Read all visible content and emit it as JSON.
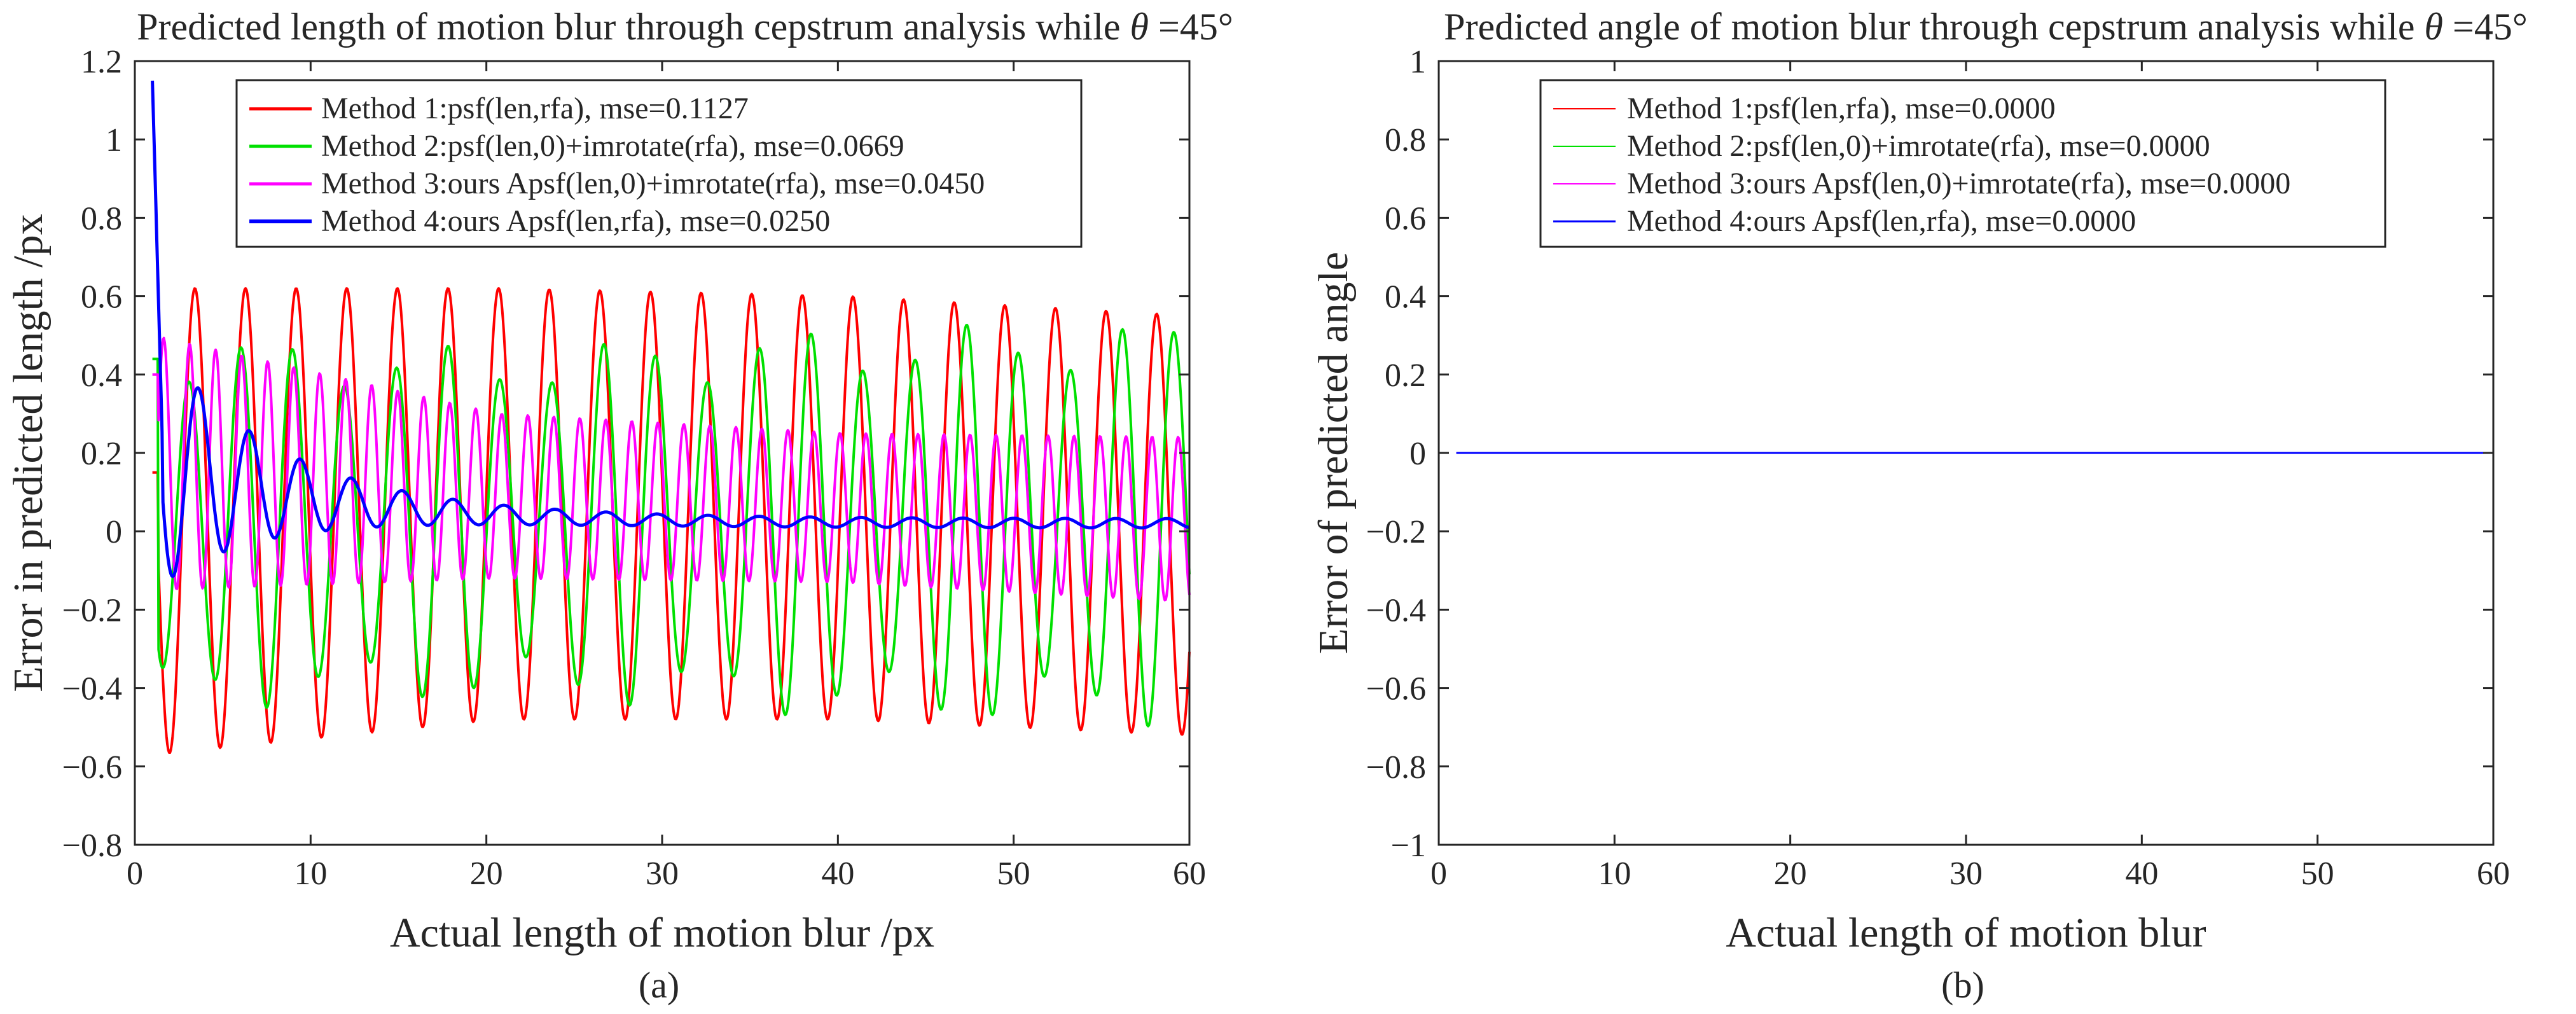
{
  "figure": {
    "panels": [
      "a",
      "b"
    ]
  },
  "chart_data": [
    {
      "id": "a",
      "type": "line",
      "title_main": "Predicted length of motion blur through cepstrum analysis while ",
      "title_theta": "θ",
      "title_tail": " =45°",
      "xlabel": "Actual length of motion blur /px",
      "ylabel": "Error in predicted length /px",
      "caption": "(a)",
      "xlim": [
        0,
        60
      ],
      "ylim": [
        -0.8,
        1.2
      ],
      "xticks": [
        0,
        10,
        20,
        30,
        40,
        50,
        60
      ],
      "yticks": [
        -0.8,
        -0.6,
        -0.4,
        -0.2,
        0,
        0.2,
        0.4,
        0.6,
        0.8,
        1,
        1.2
      ],
      "x_start": 1,
      "x_end": 60,
      "legend_position": "top",
      "series": [
        {
          "name": "Method 1:psf(len,rfa), mse=0.1127",
          "color": "#ff0000",
          "width": 4,
          "model": {
            "type": "oscillation",
            "period": 2.88,
            "phase": 0.4,
            "hi": [
              0.62,
              0.62,
              0.6,
              0.55
            ],
            "lo": [
              -0.57,
              -0.48,
              -0.48,
              -0.52
            ],
            "start_value": 0.15
          }
        },
        {
          "name": "Method 2:psf(len,0)+imrotate(rfa), mse=0.0669",
          "color": "#00e000",
          "width": 4,
          "model": {
            "type": "beat",
            "period": 2.95,
            "phase": 1.3,
            "amp": [
              0.48,
              0.45,
              0.5,
              0.52
            ],
            "offset": 0.02,
            "mod_period": 10,
            "mod_depth": 0.25,
            "start_value": 0.44
          }
        },
        {
          "name": "Method 3:ours Apsf(len,0)+imrotate(rfa), mse=0.0450",
          "color": "#ff00ff",
          "width": 4,
          "model": {
            "type": "oscillation",
            "period": 1.48,
            "phase": 0.9,
            "hi": [
              0.5,
              0.3,
              0.25,
              0.24
            ],
            "lo": [
              -0.15,
              -0.12,
              -0.13,
              -0.18
            ],
            "start_value": 0.4
          }
        },
        {
          "name": "Method 4:ours Apsf(len,rfa), mse=0.0250",
          "color": "#0000ff",
          "width": 5,
          "model": {
            "type": "decay",
            "start_value": 1.15,
            "period": 2.9,
            "amp0": 0.32,
            "decay": 0.16,
            "floor_amp": 0.012,
            "mean_start": 0.18,
            "mean_end": 0.02
          }
        }
      ]
    },
    {
      "id": "b",
      "type": "line",
      "title_main": "Predicted angle of motion blur through cepstrum analysis while ",
      "title_theta": "θ",
      "title_tail": " =45°",
      "xlabel": "Actual length of motion blur",
      "ylabel": "Error of predicted angle",
      "caption": "(b)",
      "xlim": [
        0,
        60
      ],
      "ylim": [
        -1,
        1
      ],
      "xticks": [
        0,
        10,
        20,
        30,
        40,
        50,
        60
      ],
      "yticks": [
        -1,
        -0.8,
        -0.6,
        -0.4,
        -0.2,
        0,
        0.2,
        0.4,
        0.6,
        0.8,
        1
      ],
      "x_start": 1,
      "x_end": 60,
      "legend_position": "top-left",
      "series": [
        {
          "name": "Method 1:psf(len,rfa), mse=0.0000",
          "color": "#ff0000",
          "width": 2,
          "model": {
            "type": "constant",
            "value": 0
          }
        },
        {
          "name": "Method 2:psf(len,0)+imrotate(rfa), mse=0.0000",
          "color": "#00e000",
          "width": 2,
          "model": {
            "type": "constant",
            "value": 0
          }
        },
        {
          "name": "Method 3:ours Apsf(len,0)+imrotate(rfa), mse=0.0000",
          "color": "#ff00ff",
          "width": 2,
          "model": {
            "type": "constant",
            "value": 0
          }
        },
        {
          "name": "Method 4:ours Apsf(len,rfa), mse=0.0000",
          "color": "#0000ff",
          "width": 3,
          "model": {
            "type": "constant",
            "value": 0
          }
        }
      ]
    }
  ]
}
